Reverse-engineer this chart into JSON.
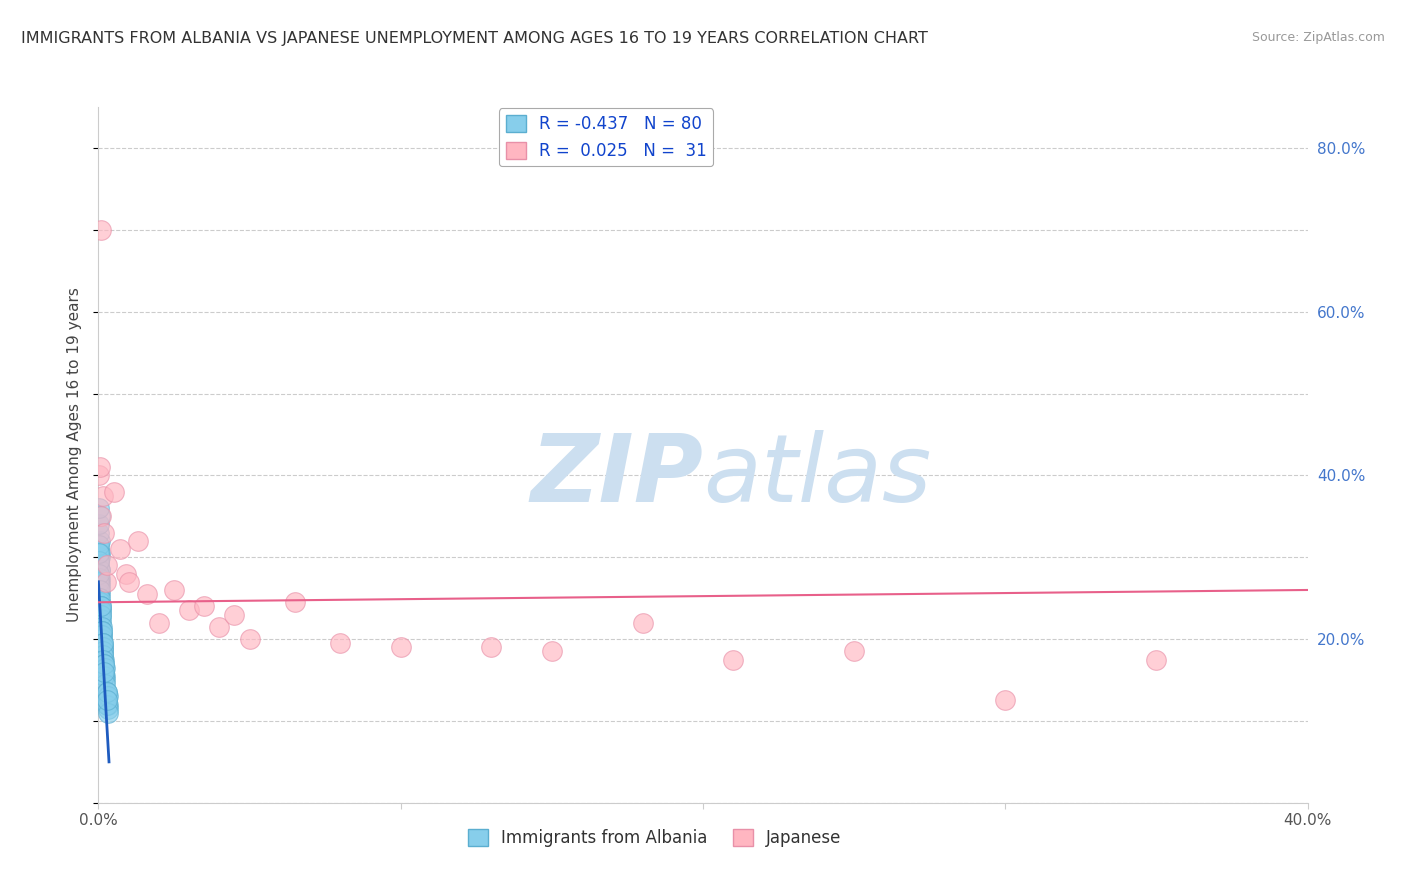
{
  "title": "IMMIGRANTS FROM ALBANIA VS JAPANESE UNEMPLOYMENT AMONG AGES 16 TO 19 YEARS CORRELATION CHART",
  "source": "Source: ZipAtlas.com",
  "ylabel": "Unemployment Among Ages 16 to 19 years",
  "xlim": [
    0.0,
    0.4
  ],
  "ylim": [
    0.0,
    0.85
  ],
  "x_ticks": [
    0.0,
    0.1,
    0.2,
    0.3,
    0.4
  ],
  "x_tick_labels": [
    "0.0%",
    "",
    "",
    "",
    "40.0%"
  ],
  "y_ticks": [
    0.0,
    0.2,
    0.4,
    0.6,
    0.8
  ],
  "y_tick_labels_right": [
    "",
    "20.0%",
    "40.0%",
    "60.0%",
    "80.0%"
  ],
  "blue_color": "#87CEEB",
  "pink_color": "#FFB6C1",
  "blue_edge_color": "#5BAED0",
  "pink_edge_color": "#E890A8",
  "blue_line_color": "#1E5BBF",
  "pink_line_color": "#E8608A",
  "background_color": "#FFFFFF",
  "watermark_color": "#CCDFF0",
  "legend_label1": "Immigrants from Albania",
  "legend_label2": "Japanese",
  "blue_scatter_x": [
    0.0002,
    0.0003,
    0.0004,
    0.0005,
    0.0003,
    0.0002,
    0.0004,
    0.0003,
    0.0005,
    0.0002,
    0.0003,
    0.0004,
    0.0002,
    0.0003,
    0.0004,
    0.0005,
    0.0003,
    0.0002,
    0.0004,
    0.0003,
    0.0005,
    0.0004,
    0.0003,
    0.0002,
    0.0005,
    0.0003,
    0.0004,
    0.0002,
    0.0003,
    0.0005,
    0.0006,
    0.0007,
    0.0006,
    0.0007,
    0.0008,
    0.0007,
    0.0008,
    0.0009,
    0.0008,
    0.0007,
    0.001,
    0.0011,
    0.0012,
    0.001,
    0.0011,
    0.001,
    0.0012,
    0.0011,
    0.0013,
    0.0012,
    0.0015,
    0.0016,
    0.0014,
    0.0015,
    0.0016,
    0.0017,
    0.0015,
    0.0016,
    0.0014,
    0.0015,
    0.002,
    0.0021,
    0.0019,
    0.002,
    0.0022,
    0.0021,
    0.002,
    0.0019,
    0.0021,
    0.002,
    0.003,
    0.0031,
    0.0029,
    0.003,
    0.0032,
    0.0031,
    0.003,
    0.0029,
    0.0031,
    0.003
  ],
  "blue_scatter_y": [
    0.29,
    0.28,
    0.3,
    0.27,
    0.31,
    0.26,
    0.32,
    0.275,
    0.305,
    0.265,
    0.33,
    0.285,
    0.295,
    0.315,
    0.275,
    0.285,
    0.295,
    0.305,
    0.265,
    0.275,
    0.255,
    0.245,
    0.27,
    0.28,
    0.26,
    0.34,
    0.35,
    0.36,
    0.25,
    0.24,
    0.245,
    0.235,
    0.25,
    0.24,
    0.23,
    0.22,
    0.235,
    0.225,
    0.23,
    0.24,
    0.21,
    0.205,
    0.215,
    0.2,
    0.21,
    0.205,
    0.195,
    0.2,
    0.205,
    0.21,
    0.19,
    0.185,
    0.195,
    0.18,
    0.19,
    0.175,
    0.185,
    0.18,
    0.195,
    0.175,
    0.165,
    0.155,
    0.17,
    0.16,
    0.15,
    0.165,
    0.155,
    0.17,
    0.145,
    0.16,
    0.13,
    0.12,
    0.135,
    0.125,
    0.115,
    0.13,
    0.12,
    0.135,
    0.11,
    0.125
  ],
  "pink_scatter_x": [
    0.0003,
    0.0004,
    0.0008,
    0.001,
    0.0015,
    0.002,
    0.0025,
    0.003,
    0.005,
    0.007,
    0.009,
    0.01,
    0.013,
    0.016,
    0.02,
    0.025,
    0.03,
    0.035,
    0.04,
    0.045,
    0.05,
    0.065,
    0.08,
    0.1,
    0.13,
    0.15,
    0.18,
    0.21,
    0.25,
    0.3,
    0.35
  ],
  "pink_scatter_y": [
    0.4,
    0.41,
    0.7,
    0.35,
    0.375,
    0.33,
    0.27,
    0.29,
    0.38,
    0.31,
    0.28,
    0.27,
    0.32,
    0.255,
    0.22,
    0.26,
    0.235,
    0.24,
    0.215,
    0.23,
    0.2,
    0.245,
    0.195,
    0.19,
    0.19,
    0.185,
    0.22,
    0.175,
    0.185,
    0.125,
    0.175
  ],
  "blue_trend_x": [
    0.0,
    0.0035
  ],
  "blue_trend_y": [
    0.27,
    0.05
  ],
  "pink_trend_x": [
    0.0,
    0.4
  ],
  "pink_trend_y": [
    0.245,
    0.26
  ]
}
